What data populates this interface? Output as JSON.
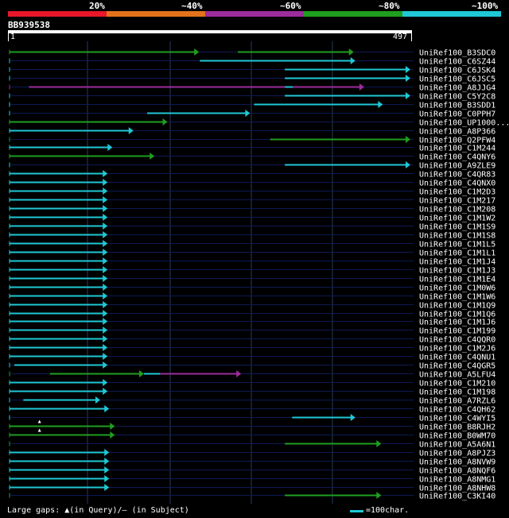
{
  "legend": {
    "labels": [
      "20%",
      "~40%",
      "~60%",
      "~80%",
      "~100%"
    ],
    "colors": [
      "#e8172a",
      "#e2731c",
      "#9c2c9c",
      "#1f9e1f",
      "#1fc8d6"
    ]
  },
  "query": {
    "id": "BB939538",
    "start": "1",
    "end": "497",
    "length": 497
  },
  "colors": {
    "background": "#000000",
    "grid": "#2a3a5a",
    "row_line": "#0e1a55",
    "text": "#ffffff"
  },
  "hits": [
    {
      "name": "UniRef100_B3SDC0",
      "segments": [
        {
          "s": 1,
          "e": 235,
          "c": 3,
          "arrow": true
        },
        {
          "s": 283,
          "e": 426,
          "c": 3,
          "arrow": true
        }
      ],
      "marks": []
    },
    {
      "name": "UniRef100_C6SZ44",
      "segments": [
        {
          "s": 236,
          "e": 428,
          "c": 4,
          "arrow": true
        }
      ],
      "marks": []
    },
    {
      "name": "UniRef100_C6JSK4",
      "segments": [
        {
          "s": 341,
          "e": 496,
          "c": 4,
          "arrow": true
        }
      ],
      "marks": []
    },
    {
      "name": "UniRef100_C6JSC5",
      "segments": [
        {
          "s": 341,
          "e": 496,
          "c": 4,
          "arrow": true
        }
      ],
      "marks": []
    },
    {
      "name": "UniRef100_A8JJG4",
      "segments": [
        {
          "s": 25,
          "e": 341,
          "c": 2,
          "arrow": false
        },
        {
          "s": 341,
          "e": 351,
          "c": 4,
          "arrow": false
        },
        {
          "s": 351,
          "e": 439,
          "c": 2,
          "arrow": true
        }
      ],
      "marks": []
    },
    {
      "name": "UniRef100_C5Y2C8",
      "segments": [
        {
          "s": 341,
          "e": 496,
          "c": 4,
          "arrow": true
        }
      ],
      "marks": []
    },
    {
      "name": "UniRef100_B3SDD1",
      "segments": [
        {
          "s": 303,
          "e": 462,
          "c": 4,
          "arrow": true
        }
      ],
      "marks": []
    },
    {
      "name": "UniRef100_C0PPH7",
      "segments": [
        {
          "s": 171,
          "e": 298,
          "c": 4,
          "arrow": true
        }
      ],
      "marks": []
    },
    {
      "name": "UniRef100_UP1000...",
      "segments": [
        {
          "s": 1,
          "e": 196,
          "c": 3,
          "arrow": true
        }
      ],
      "marks": []
    },
    {
      "name": "UniRef100_A8P366",
      "segments": [
        {
          "s": 1,
          "e": 154,
          "c": 4,
          "arrow": true
        }
      ],
      "marks": []
    },
    {
      "name": "UniRef100_Q2PFW4",
      "segments": [
        {
          "s": 323,
          "e": 496,
          "c": 3,
          "arrow": true
        }
      ],
      "marks": []
    },
    {
      "name": "UniRef100_C1M244",
      "segments": [
        {
          "s": 1,
          "e": 128,
          "c": 4,
          "arrow": true
        }
      ],
      "marks": []
    },
    {
      "name": "UniRef100_C4QNY6",
      "segments": [
        {
          "s": 1,
          "e": 180,
          "c": 3,
          "arrow": true
        }
      ],
      "marks": []
    },
    {
      "name": "UniRef100_A9ZLE9",
      "segments": [
        {
          "s": 341,
          "e": 496,
          "c": 4,
          "arrow": true
        }
      ],
      "marks": []
    },
    {
      "name": "UniRef100_C4QR83",
      "segments": [
        {
          "s": 1,
          "e": 122,
          "c": 4,
          "arrow": true
        }
      ],
      "marks": []
    },
    {
      "name": "UniRef100_C4QNX0",
      "segments": [
        {
          "s": 1,
          "e": 122,
          "c": 4,
          "arrow": true
        }
      ],
      "marks": []
    },
    {
      "name": "UniRef100_C1M2D3",
      "segments": [
        {
          "s": 1,
          "e": 122,
          "c": 4,
          "arrow": true
        }
      ],
      "marks": []
    },
    {
      "name": "UniRef100_C1M217",
      "segments": [
        {
          "s": 1,
          "e": 122,
          "c": 4,
          "arrow": true
        }
      ],
      "marks": []
    },
    {
      "name": "UniRef100_C1M208",
      "segments": [
        {
          "s": 1,
          "e": 122,
          "c": 4,
          "arrow": true
        }
      ],
      "marks": []
    },
    {
      "name": "UniRef100_C1M1W2",
      "segments": [
        {
          "s": 1,
          "e": 122,
          "c": 4,
          "arrow": true
        }
      ],
      "marks": []
    },
    {
      "name": "UniRef100_C1M1S9",
      "segments": [
        {
          "s": 1,
          "e": 122,
          "c": 4,
          "arrow": true
        }
      ],
      "marks": []
    },
    {
      "name": "UniRef100_C1M1S8",
      "segments": [
        {
          "s": 1,
          "e": 122,
          "c": 4,
          "arrow": true
        }
      ],
      "marks": []
    },
    {
      "name": "UniRef100_C1M1L5",
      "segments": [
        {
          "s": 1,
          "e": 122,
          "c": 4,
          "arrow": true
        }
      ],
      "marks": []
    },
    {
      "name": "UniRef100_C1M1L1",
      "segments": [
        {
          "s": 1,
          "e": 122,
          "c": 4,
          "arrow": true
        }
      ],
      "marks": []
    },
    {
      "name": "UniRef100_C1M1J4",
      "segments": [
        {
          "s": 1,
          "e": 122,
          "c": 4,
          "arrow": true
        }
      ],
      "marks": []
    },
    {
      "name": "UniRef100_C1M1J3",
      "segments": [
        {
          "s": 1,
          "e": 122,
          "c": 4,
          "arrow": true
        }
      ],
      "marks": []
    },
    {
      "name": "UniRef100_C1M1E4",
      "segments": [
        {
          "s": 1,
          "e": 122,
          "c": 4,
          "arrow": true
        }
      ],
      "marks": []
    },
    {
      "name": "UniRef100_C1M0W6",
      "segments": [
        {
          "s": 1,
          "e": 122,
          "c": 4,
          "arrow": true
        }
      ],
      "marks": []
    },
    {
      "name": "UniRef100_C1M1W6",
      "segments": [
        {
          "s": 1,
          "e": 122,
          "c": 4,
          "arrow": true
        }
      ],
      "marks": []
    },
    {
      "name": "UniRef100_C1M1Q9",
      "segments": [
        {
          "s": 1,
          "e": 122,
          "c": 4,
          "arrow": true
        }
      ],
      "marks": []
    },
    {
      "name": "UniRef100_C1M1Q6",
      "segments": [
        {
          "s": 1,
          "e": 122,
          "c": 4,
          "arrow": true
        }
      ],
      "marks": []
    },
    {
      "name": "UniRef100_C1M1J6",
      "segments": [
        {
          "s": 1,
          "e": 122,
          "c": 4,
          "arrow": true
        }
      ],
      "marks": []
    },
    {
      "name": "UniRef100_C1M199",
      "segments": [
        {
          "s": 1,
          "e": 122,
          "c": 4,
          "arrow": true
        }
      ],
      "marks": []
    },
    {
      "name": "UniRef100_C4QQR0",
      "segments": [
        {
          "s": 1,
          "e": 122,
          "c": 4,
          "arrow": true
        }
      ],
      "marks": []
    },
    {
      "name": "UniRef100_C1M2J6",
      "segments": [
        {
          "s": 1,
          "e": 122,
          "c": 4,
          "arrow": true
        }
      ],
      "marks": []
    },
    {
      "name": "UniRef100_C4QNU1",
      "segments": [
        {
          "s": 1,
          "e": 122,
          "c": 4,
          "arrow": true
        }
      ],
      "marks": []
    },
    {
      "name": "UniRef100_C4QGR5",
      "segments": [
        {
          "s": 7,
          "e": 122,
          "c": 4,
          "arrow": true
        }
      ],
      "marks": []
    },
    {
      "name": "UniRef100_A5LFU4",
      "segments": [
        {
          "s": 51,
          "e": 167,
          "c": 3,
          "arrow": true
        },
        {
          "s": 167,
          "e": 187,
          "c": 4,
          "arrow": false
        },
        {
          "s": 187,
          "e": 287,
          "c": 2,
          "arrow": true
        }
      ],
      "marks": []
    },
    {
      "name": "UniRef100_C1M210",
      "segments": [
        {
          "s": 1,
          "e": 122,
          "c": 4,
          "arrow": true
        }
      ],
      "marks": []
    },
    {
      "name": "UniRef100_C1M198",
      "segments": [
        {
          "s": 1,
          "e": 122,
          "c": 4,
          "arrow": true
        }
      ],
      "marks": []
    },
    {
      "name": "UniRef100_A7RZL6",
      "segments": [
        {
          "s": 18,
          "e": 113,
          "c": 4,
          "arrow": true
        }
      ],
      "marks": []
    },
    {
      "name": "UniRef100_C4QH62",
      "segments": [
        {
          "s": 1,
          "e": 124,
          "c": 4,
          "arrow": true
        }
      ],
      "marks": []
    },
    {
      "name": "UniRef100_C4WYI5",
      "segments": [
        {
          "s": 350,
          "e": 428,
          "c": 4,
          "arrow": true
        }
      ],
      "marks": []
    },
    {
      "name": "UniRef100_B8RJH2",
      "segments": [
        {
          "s": 1,
          "e": 131,
          "c": 3,
          "arrow": true
        }
      ],
      "marks": [
        {
          "pos": 38,
          "type": "query"
        }
      ]
    },
    {
      "name": "UniRef100_B0WM70",
      "segments": [
        {
          "s": 1,
          "e": 131,
          "c": 3,
          "arrow": true
        }
      ],
      "marks": [
        {
          "pos": 38,
          "type": "query"
        }
      ]
    },
    {
      "name": "UniRef100_A5A6N1",
      "segments": [
        {
          "s": 341,
          "e": 460,
          "c": 3,
          "arrow": true
        }
      ],
      "marks": []
    },
    {
      "name": "UniRef100_A8PJZ3",
      "segments": [
        {
          "s": 1,
          "e": 124,
          "c": 4,
          "arrow": true
        }
      ],
      "marks": []
    },
    {
      "name": "UniRef100_A8NVW9",
      "segments": [
        {
          "s": 1,
          "e": 124,
          "c": 4,
          "arrow": true
        }
      ],
      "marks": []
    },
    {
      "name": "UniRef100_A8NQF6",
      "segments": [
        {
          "s": 1,
          "e": 124,
          "c": 4,
          "arrow": true
        }
      ],
      "marks": []
    },
    {
      "name": "UniRef100_A8NMG1",
      "segments": [
        {
          "s": 1,
          "e": 124,
          "c": 4,
          "arrow": true
        }
      ],
      "marks": []
    },
    {
      "name": "UniRef100_A8NHW8",
      "segments": [
        {
          "s": 1,
          "e": 124,
          "c": 4,
          "arrow": true
        }
      ],
      "marks": []
    },
    {
      "name": "UniRef100_C3KI40",
      "segments": [
        {
          "s": 341,
          "e": 460,
          "c": 3,
          "arrow": true
        }
      ],
      "marks": []
    }
  ],
  "footer": {
    "gaps_prefix": "Large gaps: ",
    "gaps_query": "(in Query)/",
    "gaps_subject": "(in Subject)",
    "scale_label": "=100char."
  }
}
